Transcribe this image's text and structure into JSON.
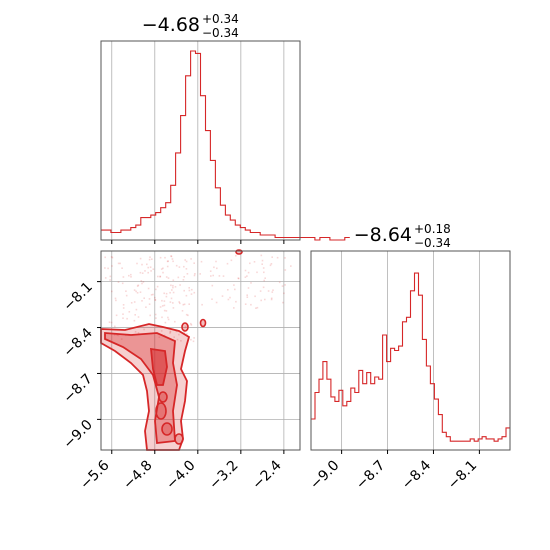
{
  "chart_data": [
    {
      "type": "histogram",
      "panel": "top-left",
      "title": {
        "value": "−4.68",
        "plus": "+0.34",
        "minus": "−0.34"
      },
      "xlim": [
        -5.8,
        -2.1
      ],
      "color": "#d62728",
      "bin_edges_start": -5.8,
      "bin_width": 0.0925,
      "counts": [
        4,
        4,
        3,
        3,
        4,
        4,
        5,
        6,
        9,
        9,
        10,
        11,
        13,
        15,
        22,
        35,
        50,
        66,
        76,
        75,
        58,
        44,
        32,
        21,
        14,
        10,
        8,
        6,
        5,
        4,
        3,
        3,
        2,
        2,
        2,
        1,
        1,
        1,
        1,
        1,
        1,
        1,
        1,
        0,
        1,
        1,
        0,
        0,
        0,
        1
      ],
      "ylim": [
        0,
        80
      ],
      "grid": true
    },
    {
      "type": "contour",
      "panel": "bottom-left",
      "xlim": [
        -5.8,
        -2.1
      ],
      "ylim": [
        -9.2,
        -7.9
      ],
      "x_ticks": [
        "−5.6",
        "−4.8",
        "−4.0",
        "−3.2",
        "−2.4"
      ],
      "x_tick_values": [
        -5.6,
        -4.8,
        -4.0,
        -3.2,
        -2.4
      ],
      "y_ticks": [
        "−8.1",
        "−8.4",
        "−8.7",
        "−9.0"
      ],
      "y_tick_values": [
        -8.1,
        -8.4,
        -8.7,
        -9.0
      ],
      "color": "#d62728",
      "grid": true
    },
    {
      "type": "histogram",
      "panel": "bottom-right",
      "title": {
        "value": "−8.64",
        "plus": "+0.18",
        "minus": "−0.34"
      },
      "xlim": [
        -9.2,
        -7.9
      ],
      "x_ticks": [
        "−9.0",
        "−8.7",
        "−8.4",
        "−8.1"
      ],
      "x_tick_values": [
        -9.0,
        -8.7,
        -8.4,
        -8.1
      ],
      "color": "#d62728",
      "bin_edges_start": -9.2,
      "bin_width": 0.026,
      "counts": [
        14,
        26,
        32,
        40,
        32,
        24,
        22,
        27,
        20,
        22,
        28,
        26,
        36,
        30,
        35,
        30,
        33,
        32,
        52,
        40,
        46,
        45,
        47,
        58,
        60,
        72,
        80,
        70,
        50,
        38,
        30,
        23,
        16,
        8,
        6,
        4,
        4,
        4,
        4,
        4,
        5,
        4,
        5,
        6,
        5,
        5,
        4,
        5,
        6,
        10
      ],
      "ylim": [
        0,
        90
      ],
      "grid": true
    }
  ]
}
